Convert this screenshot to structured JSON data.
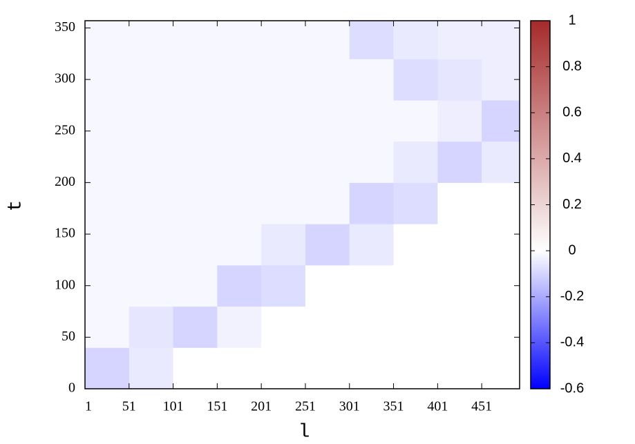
{
  "chart_data": {
    "type": "heatmap",
    "xlabel": "l",
    "ylabel": "t",
    "x_edges": [
      1,
      51,
      101,
      151,
      201,
      251,
      301,
      351,
      401,
      451,
      494
    ],
    "y_edges": [
      0,
      40,
      80,
      120,
      160,
      200,
      240,
      280,
      320,
      357
    ],
    "z": [
      [
        -0.1,
        -0.05,
        0,
        0,
        0,
        0,
        0,
        0,
        0,
        0
      ],
      [
        -0.02,
        -0.06,
        -0.1,
        -0.03,
        0,
        0,
        0,
        0,
        0,
        0
      ],
      [
        -0.02,
        -0.02,
        -0.02,
        -0.1,
        -0.08,
        0,
        0,
        0,
        0,
        0
      ],
      [
        -0.02,
        -0.02,
        -0.02,
        -0.02,
        -0.05,
        -0.1,
        -0.05,
        0,
        0,
        0
      ],
      [
        -0.02,
        -0.02,
        -0.02,
        -0.02,
        -0.02,
        -0.02,
        -0.1,
        -0.08,
        0,
        0
      ],
      [
        -0.02,
        -0.02,
        -0.02,
        -0.02,
        -0.02,
        -0.02,
        -0.02,
        -0.05,
        -0.1,
        -0.05
      ],
      [
        -0.02,
        -0.02,
        -0.02,
        -0.02,
        -0.02,
        -0.02,
        -0.02,
        -0.02,
        -0.04,
        -0.1
      ],
      [
        -0.02,
        -0.02,
        -0.02,
        -0.02,
        -0.02,
        -0.02,
        -0.02,
        -0.08,
        -0.06,
        -0.04
      ],
      [
        -0.02,
        -0.02,
        -0.02,
        -0.02,
        -0.02,
        -0.02,
        -0.08,
        -0.05,
        -0.04,
        -0.04
      ]
    ],
    "xlim": [
      1,
      494
    ],
    "ylim": [
      0,
      357
    ],
    "xticks": [
      1,
      51,
      101,
      151,
      201,
      251,
      301,
      351,
      401,
      451
    ],
    "yticks": [
      0,
      50,
      100,
      150,
      200,
      250,
      300,
      350
    ],
    "colormap": [
      {
        "value": -0.6,
        "color": "#0000ff"
      },
      {
        "value": 0,
        "color": "#ffffff"
      },
      {
        "value": 1,
        "color": "#a52a2a"
      }
    ],
    "clim": [
      -0.6,
      1
    ],
    "cticks": [
      -0.6,
      -0.4,
      -0.2,
      0,
      0.2,
      0.4,
      0.6,
      0.8,
      1
    ]
  }
}
